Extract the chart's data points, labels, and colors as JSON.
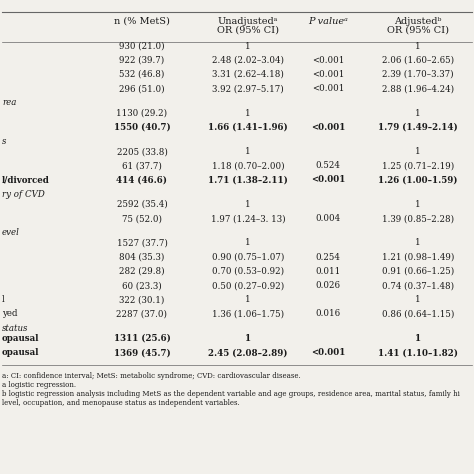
{
  "bg_color": "#f2f0eb",
  "text_color": "#1a1a1a",
  "header": {
    "col1": "n (% MetS)",
    "col2": "Unadjustedᵃ\nOR (95% CI)",
    "col3": "P valueᵃ",
    "col4": "Adjustedᵇ\nOR (95% CI)"
  },
  "rows": [
    {
      "label": "",
      "n": "930 (21.0)",
      "unadj": "1",
      "pval": "",
      "adj": "1",
      "bold": false,
      "gap_before": true
    },
    {
      "label": "",
      "n": "922 (39.7)",
      "unadj": "2.48 (2.02–3.04)",
      "pval": "<0.001",
      "adj": "2.06 (1.60–2.65)",
      "bold": false,
      "gap_before": false
    },
    {
      "label": "",
      "n": "532 (46.8)",
      "unadj": "3.31 (2.62–4.18)",
      "pval": "<0.001",
      "adj": "2.39 (1.70–3.37)",
      "bold": false,
      "gap_before": false
    },
    {
      "label": "",
      "n": "296 (51.0)",
      "unadj": "3.92 (2.97–5.17)",
      "pval": "<0.001",
      "adj": "2.88 (1.96–4.24)",
      "bold": false,
      "gap_before": false
    },
    {
      "label": "rea",
      "n": "",
      "unadj": "",
      "pval": "",
      "adj": "",
      "bold": false,
      "gap_before": false,
      "section": true
    },
    {
      "label": "",
      "n": "1130 (29.2)",
      "unadj": "1",
      "pval": "",
      "adj": "1",
      "bold": false,
      "gap_before": false
    },
    {
      "label": "",
      "n": "1550 (40.7)",
      "unadj": "1.66 (1.41–1.96)",
      "pval": "<0.001",
      "adj": "1.79 (1.49–2.14)",
      "bold": true,
      "gap_before": false
    },
    {
      "label": "s",
      "n": "",
      "unadj": "",
      "pval": "",
      "adj": "",
      "bold": false,
      "gap_before": false,
      "section": true
    },
    {
      "label": "",
      "n": "2205 (33.8)",
      "unadj": "1",
      "pval": "",
      "adj": "1",
      "bold": false,
      "gap_before": false
    },
    {
      "label": "",
      "n": "61 (37.7)",
      "unadj": "1.18 (0.70–2.00)",
      "pval": "0.524",
      "adj": "1.25 (0.71–2.19)",
      "bold": false,
      "gap_before": false
    },
    {
      "label": "l/divorced",
      "n": "414 (46.6)",
      "unadj": "1.71 (1.38–2.11)",
      "pval": "<0.001",
      "adj": "1.26 (1.00–1.59)",
      "bold": true,
      "gap_before": false
    },
    {
      "label": "ry of CVD",
      "n": "",
      "unadj": "",
      "pval": "",
      "adj": "",
      "bold": false,
      "gap_before": false,
      "section": true
    },
    {
      "label": "",
      "n": "2592 (35.4)",
      "unadj": "1",
      "pval": "",
      "adj": "1",
      "bold": false,
      "gap_before": false
    },
    {
      "label": "",
      "n": "75 (52.0)",
      "unadj": "1.97 (1.24–3. 13)",
      "pval": "0.004",
      "adj": "1.39 (0.85–2.28)",
      "bold": false,
      "gap_before": false
    },
    {
      "label": "evel",
      "n": "",
      "unadj": "",
      "pval": "",
      "adj": "",
      "bold": false,
      "gap_before": false,
      "section": true
    },
    {
      "label": "",
      "n": "1527 (37.7)",
      "unadj": "1",
      "pval": "",
      "adj": "1",
      "bold": false,
      "gap_before": false
    },
    {
      "label": "",
      "n": "804 (35.3)",
      "unadj": "0.90 (0.75–1.07)",
      "pval": "0.254",
      "adj": "1.21 (0.98–1.49)",
      "bold": false,
      "gap_before": false
    },
    {
      "label": "",
      "n": "282 (29.8)",
      "unadj": "0.70 (0.53–0.92)",
      "pval": "0.011",
      "adj": "0.91 (0.66–1.25)",
      "bold": false,
      "gap_before": false
    },
    {
      "label": "",
      "n": "60 (23.3)",
      "unadj": "0.50 (0.27–0.92)",
      "pval": "0.026",
      "adj": "0.74 (0.37–1.48)",
      "bold": false,
      "gap_before": false
    },
    {
      "label": "l",
      "n": "322 (30.1)",
      "unadj": "1",
      "pval": "",
      "adj": "1",
      "bold": false,
      "gap_before": false
    },
    {
      "label": "yed",
      "n": "2287 (37.0)",
      "unadj": "1.36 (1.06–1.75)",
      "pval": "0.016",
      "adj": "0.86 (0.64–1.15)",
      "bold": false,
      "gap_before": false
    },
    {
      "label": "status",
      "n": "",
      "unadj": "",
      "pval": "",
      "adj": "",
      "bold": false,
      "gap_before": false,
      "section": true
    },
    {
      "label": "opausal",
      "n": "1311 (25.6)",
      "unadj": "1",
      "pval": "",
      "adj": "1",
      "bold": true,
      "gap_before": false
    },
    {
      "label": "opausal",
      "n": "1369 (45.7)",
      "unadj": "2.45 (2.08–2.89)",
      "pval": "<0.001",
      "adj": "1.41 (1.10–1.82)",
      "bold": true,
      "gap_before": false
    }
  ],
  "footnotes": [
    "a: CI: confidence interval; MetS: metabolic syndrome; CVD: cardiovascular disease.",
    "a logistic regression.",
    "b logistic regression analysis including MetS as the dependent variable and age groups, residence area, marital status, family hi",
    "level, occupation, and menopause status as independent variables."
  ]
}
